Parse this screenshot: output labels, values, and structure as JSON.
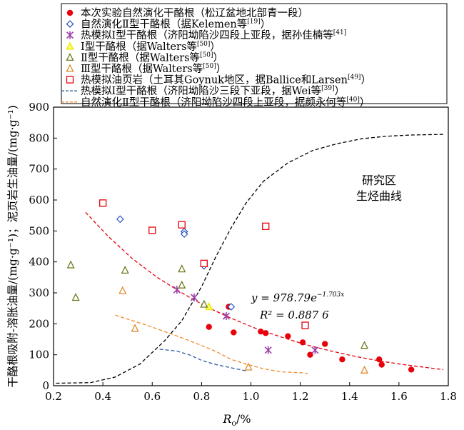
{
  "chart_data": {
    "type": "scatter",
    "xlabel": "R",
    "xlabel_sub": "o",
    "xlabel_unit": "/%",
    "ylabel": "干酪根吸附-溶胀油量/(mg·g⁻¹)；泥页岩生油量/(mg·g⁻¹)",
    "xlim": [
      0.2,
      1.8
    ],
    "ylim": [
      0,
      900
    ],
    "xticks": [
      "0.2",
      "0.4",
      "0.6",
      "0.8",
      "1.0",
      "1.2",
      "1.4",
      "1.6",
      "1.8"
    ],
    "yticks": [
      "0",
      "100",
      "200",
      "300",
      "400",
      "500",
      "600",
      "700",
      "800",
      "900"
    ],
    "grid": false,
    "legend_position": "top",
    "legend": [
      {
        "name": "本次实验自然演化干酪根（松辽盆地北部青一段）",
        "sup": "",
        "tail": "",
        "marker": "dot",
        "color": "#e8000b"
      },
      {
        "name": "自然演化Ⅱ型干酪根（据Kelemen等",
        "sup": "[19]",
        "tail": "）",
        "marker": "diamond",
        "color": "#2a52be"
      },
      {
        "name": "热模拟Ⅰ型干酪根（济阳坳陷沙四段上亚段，据孙佳楠等",
        "sup": "[41]",
        "tail": "",
        "marker": "star",
        "color": "#9b40a8"
      },
      {
        "name": "Ⅰ型干酪根（据Walters等",
        "sup": "[50]",
        "tail": "）",
        "marker": "triangle",
        "color": "#e8e800"
      },
      {
        "name": "Ⅱ型干酪根（据Walters等",
        "sup": "[50]",
        "tail": "）",
        "marker": "triangle",
        "color": "#6b7d1f"
      },
      {
        "name": "Ⅲ型干酪根（据Walters等",
        "sup": "[50]",
        "tail": "）",
        "marker": "triangle",
        "color": "#e08a2a"
      },
      {
        "name": "热模拟油页岩（土耳其Goynuk地区，据Ballice和Larsen",
        "sup": "[49]",
        "tail": "）",
        "marker": "square",
        "color": "#e8000b"
      },
      {
        "name": "热模拟Ⅰ型干酪根（济阳坳陷沙三段下亚段，据Wei等",
        "sup": "[39]",
        "tail": "）",
        "marker": "dash",
        "color": "#2c5aa0"
      },
      {
        "name": "自然演化Ⅱ型干酪根（济阳坳陷沙四段上亚段，据颜永何等",
        "sup": "[40]",
        "tail": "）",
        "marker": "dash",
        "color": "#f08a2a"
      }
    ],
    "series": [
      {
        "key": "present",
        "marker": "dot",
        "color": "#e8000b",
        "points": [
          [
            0.83,
            190
          ],
          [
            0.91,
            255
          ],
          [
            0.93,
            172
          ],
          [
            1.04,
            175
          ],
          [
            1.06,
            170
          ],
          [
            1.15,
            160
          ],
          [
            1.21,
            140
          ],
          [
            1.24,
            100
          ],
          [
            1.3,
            135
          ],
          [
            1.37,
            85
          ],
          [
            1.52,
            85
          ],
          [
            1.53,
            68
          ],
          [
            1.65,
            52
          ]
        ]
      },
      {
        "key": "kelemen",
        "marker": "diamond",
        "color": "#2a52be",
        "points": [
          [
            0.47,
            538
          ],
          [
            0.73,
            498
          ],
          [
            0.73,
            490
          ],
          [
            0.81,
            387
          ],
          [
            0.92,
            255
          ]
        ]
      },
      {
        "key": "sun",
        "marker": "star",
        "color": "#9b40a8",
        "points": [
          [
            0.7,
            310
          ],
          [
            0.77,
            285
          ],
          [
            0.9,
            225
          ],
          [
            1.07,
            115
          ],
          [
            1.26,
            115
          ]
        ]
      },
      {
        "key": "walters1",
        "marker": "triangle",
        "color": "#e8e800",
        "points": [
          [
            0.83,
            255
          ]
        ]
      },
      {
        "key": "walters2",
        "marker": "triangle",
        "color": "#6b7d1f",
        "points": [
          [
            0.27,
            390
          ],
          [
            0.29,
            285
          ],
          [
            0.49,
            373
          ],
          [
            0.72,
            325
          ],
          [
            0.72,
            377
          ],
          [
            0.81,
            263
          ],
          [
            1.46,
            130
          ]
        ]
      },
      {
        "key": "walters3",
        "marker": "triangle",
        "color": "#e08a2a",
        "points": [
          [
            0.48,
            307
          ],
          [
            0.53,
            185
          ],
          [
            0.99,
            60
          ],
          [
            1.46,
            50
          ]
        ]
      },
      {
        "key": "ballice",
        "marker": "square",
        "color": "#e8000b",
        "points": [
          [
            0.4,
            590
          ],
          [
            0.6,
            502
          ],
          [
            0.72,
            520
          ],
          [
            0.81,
            395
          ],
          [
            1.06,
            515
          ],
          [
            1.22,
            195
          ]
        ]
      }
    ],
    "lines": [
      {
        "key": "fit",
        "style": "dashed",
        "color": "#e8000b",
        "points": [
          [
            0.33,
            560
          ],
          [
            0.42,
            484
          ],
          [
            0.52,
            410
          ],
          [
            0.62,
            350
          ],
          [
            0.72,
            300
          ],
          [
            0.82,
            255
          ],
          [
            0.92,
            218
          ],
          [
            1.02,
            185
          ],
          [
            1.12,
            158
          ],
          [
            1.22,
            133
          ],
          [
            1.32,
            113
          ],
          [
            1.42,
            95
          ],
          [
            1.52,
            80
          ],
          [
            1.62,
            68
          ],
          [
            1.72,
            58
          ],
          [
            1.78,
            52
          ]
        ]
      },
      {
        "key": "generation_curve",
        "style": "dashed",
        "color": "#000000",
        "points": [
          [
            0.21,
            8
          ],
          [
            0.35,
            10
          ],
          [
            0.45,
            28
          ],
          [
            0.55,
            70
          ],
          [
            0.65,
            145
          ],
          [
            0.72,
            210
          ],
          [
            0.8,
            320
          ],
          [
            0.86,
            420
          ],
          [
            0.92,
            510
          ],
          [
            0.98,
            590
          ],
          [
            1.05,
            660
          ],
          [
            1.15,
            720
          ],
          [
            1.25,
            760
          ],
          [
            1.35,
            782
          ],
          [
            1.45,
            798
          ],
          [
            1.55,
            806
          ],
          [
            1.65,
            810
          ],
          [
            1.78,
            812
          ]
        ]
      },
      {
        "key": "wei",
        "style": "dashed",
        "color": "#2c5aa0",
        "points": [
          [
            0.63,
            118
          ],
          [
            0.7,
            112
          ],
          [
            0.75,
            100
          ],
          [
            0.8,
            82
          ],
          [
            0.86,
            68
          ],
          [
            0.92,
            58
          ],
          [
            0.98,
            48
          ]
        ]
      },
      {
        "key": "yan",
        "style": "dashed",
        "color": "#f08a2a",
        "points": [
          [
            0.45,
            228
          ],
          [
            0.5,
            215
          ],
          [
            0.58,
            195
          ],
          [
            0.65,
            175
          ],
          [
            0.72,
            155
          ],
          [
            0.8,
            130
          ],
          [
            0.86,
            110
          ],
          [
            0.92,
            85
          ],
          [
            0.98,
            70
          ],
          [
            1.05,
            55
          ],
          [
            1.12,
            45
          ],
          [
            1.2,
            42
          ],
          [
            1.23,
            40
          ]
        ]
      }
    ],
    "annotations": {
      "equation": "y = 978.79e",
      "equation_exp": "−1.703x",
      "r2": "R² = 0.887 6",
      "curve_label_1": "研究区",
      "curve_label_2": "生烃曲线"
    }
  }
}
